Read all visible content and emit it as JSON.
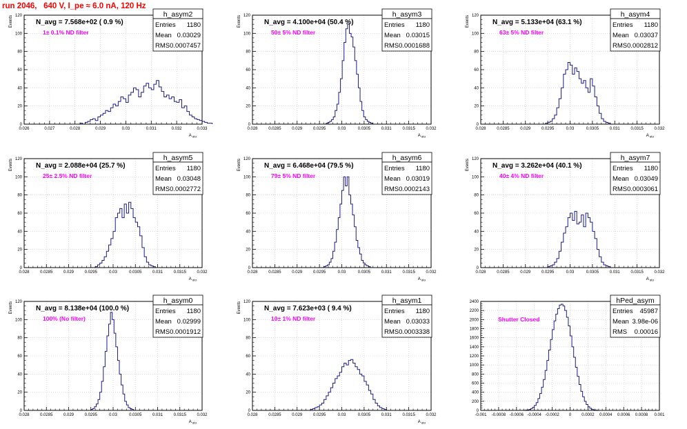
{
  "page_title": "run 2046,   640 V, I_pe ≈ 6.0 nA, 120 Hz",
  "colors": {
    "histogram": "#1a1a8c",
    "annotation": "#ff00ff",
    "frame": "#000000",
    "grid": "#c8c8c8",
    "title_text": "#ff0000"
  },
  "chart_data": [
    {
      "type": "bar",
      "hist_name": "h_asym2",
      "stats": {
        "Entries": "1180",
        "Mean": "0.03029",
        "RMS": "0.0007457"
      },
      "label": "N_avg = 7.568e+02 ( 0.9 %)",
      "filter_note": "1± 0.1% ND filter",
      "ylabel": "Events",
      "xlabel": "A_uto",
      "xlim": [
        0.026,
        0.033
      ],
      "ylim": [
        0,
        120
      ],
      "grid": true,
      "xticks": [
        0.026,
        0.027,
        0.028,
        0.029,
        0.03,
        0.031,
        0.032,
        0.033
      ],
      "xtick_labels": [
        "0.026",
        "0.027",
        "0.028",
        "0.029",
        "0.03",
        "0.031",
        "0.032",
        "0.033"
      ],
      "yticks": [
        0,
        20,
        40,
        60,
        80,
        100,
        120
      ],
      "bins": {
        "start": 0.0282,
        "step": 0.0001,
        "counts": [
          1,
          0,
          2,
          3,
          5,
          6,
          4,
          8,
          10,
          12,
          15,
          14,
          18,
          22,
          20,
          25,
          30,
          28,
          24,
          32,
          35,
          40,
          38,
          30,
          35,
          42,
          45,
          40,
          38,
          44,
          48,
          41,
          36,
          30,
          32,
          28,
          30,
          25,
          24,
          27,
          18,
          20,
          14,
          10,
          8,
          6,
          5,
          4,
          3,
          2,
          1,
          1
        ]
      }
    },
    {
      "type": "bar",
      "hist_name": "h_asym3",
      "stats": {
        "Entries": "1180",
        "Mean": "0.03015",
        "RMS": "0.0001688"
      },
      "label": "N_avg = 4.100e+04 (50.4 %)",
      "filter_note": "50± 5% ND filter",
      "ylabel": "Events",
      "xlabel": "A_uto",
      "xlim": [
        0.028,
        0.032
      ],
      "ylim": [
        0,
        120
      ],
      "grid": true,
      "xticks": [
        0.028,
        0.0285,
        0.029,
        0.0295,
        0.03,
        0.0305,
        0.031,
        0.0315,
        0.032
      ],
      "xtick_labels": [
        "0.028",
        "0.0285",
        "0.029",
        "0.0295",
        "0.03",
        "0.0305",
        "0.031",
        "0.0315",
        "0.032"
      ],
      "yticks": [
        0,
        20,
        40,
        60,
        80,
        100,
        120
      ],
      "bins": {
        "start": 0.02965,
        "step": 4e-05,
        "counts": [
          1,
          2,
          3,
          5,
          8,
          15,
          22,
          35,
          50,
          70,
          90,
          105,
          110,
          100,
          96,
          85,
          70,
          55,
          40,
          25,
          15,
          8,
          5,
          3,
          2,
          1
        ]
      }
    },
    {
      "type": "bar",
      "hist_name": "h_asym4",
      "stats": {
        "Entries": "1180",
        "Mean": "0.03037",
        "RMS": "0.0002812"
      },
      "label": "N_avg = 5.133e+04 (63.1 %)",
      "filter_note": "63± 5% ND filter",
      "ylabel": "Events",
      "xlabel": "A_uto",
      "xlim": [
        0.028,
        0.032
      ],
      "ylim": [
        0,
        120
      ],
      "grid": true,
      "xticks": [
        0.028,
        0.0285,
        0.029,
        0.0295,
        0.03,
        0.0305,
        0.031,
        0.0315,
        0.032
      ],
      "xtick_labels": [
        "0.028",
        "0.0285",
        "0.029",
        "0.0295",
        "0.03",
        "0.0305",
        "0.031",
        "0.0315",
        "0.032"
      ],
      "yticks": [
        0,
        20,
        40,
        60,
        80,
        100,
        120
      ],
      "bins": {
        "start": 0.02945,
        "step": 5e-05,
        "counts": [
          1,
          2,
          3,
          6,
          10,
          18,
          28,
          40,
          55,
          60,
          68,
          65,
          55,
          62,
          58,
          50,
          45,
          48,
          40,
          35,
          50,
          42,
          30,
          20,
          12,
          6,
          3,
          2,
          1
        ]
      }
    },
    {
      "type": "bar",
      "hist_name": "h_asym5",
      "stats": {
        "Entries": "1180",
        "Mean": "0.03048",
        "RMS": "0.0002772"
      },
      "label": "N_avg = 2.088e+04 (25.7 %)",
      "filter_note": "25± 2.5% ND filter",
      "ylabel": "Events",
      "xlabel": "A_uto",
      "xlim": [
        0.028,
        0.032
      ],
      "ylim": [
        0,
        120
      ],
      "grid": true,
      "xticks": [
        0.028,
        0.0285,
        0.029,
        0.0295,
        0.03,
        0.0305,
        0.031,
        0.0315,
        0.032
      ],
      "xtick_labels": [
        "0.028",
        "0.0285",
        "0.029",
        "0.0295",
        "0.03",
        "0.0305",
        "0.031",
        "0.0315",
        "0.032"
      ],
      "yticks": [
        0,
        20,
        40,
        60,
        80,
        100,
        120
      ],
      "bins": {
        "start": 0.0296,
        "step": 5e-05,
        "counts": [
          1,
          3,
          5,
          8,
          12,
          18,
          25,
          32,
          40,
          55,
          60,
          65,
          55,
          70,
          60,
          72,
          65,
          55,
          50,
          45,
          35,
          22,
          12,
          6,
          3,
          2,
          1
        ]
      }
    },
    {
      "type": "bar",
      "hist_name": "h_asym6",
      "stats": {
        "Entries": "1180",
        "Mean": "0.03019",
        "RMS": "0.0002143"
      },
      "label": "N_avg = 6.468e+04 (79.5 %)",
      "filter_note": "79± 5% ND filter",
      "ylabel": "Events",
      "xlabel": "A_uto",
      "xlim": [
        0.028,
        0.032
      ],
      "ylim": [
        0,
        120
      ],
      "grid": true,
      "xticks": [
        0.028,
        0.0285,
        0.029,
        0.0295,
        0.03,
        0.0305,
        0.031,
        0.0315,
        0.032
      ],
      "xtick_labels": [
        "0.028",
        "0.0285",
        "0.029",
        "0.0295",
        "0.03",
        "0.0305",
        "0.031",
        "0.0315",
        "0.032"
      ],
      "yticks": [
        0,
        20,
        40,
        60,
        80,
        100,
        120
      ],
      "bins": {
        "start": 0.0296,
        "step": 4e-05,
        "counts": [
          1,
          2,
          3,
          6,
          10,
          18,
          28,
          42,
          55,
          70,
          85,
          100,
          90,
          100,
          80,
          70,
          58,
          45,
          30,
          22,
          15,
          8,
          5,
          3,
          2,
          1
        ]
      }
    },
    {
      "type": "bar",
      "hist_name": "h_asym7",
      "stats": {
        "Entries": "1180",
        "Mean": "0.03049",
        "RMS": "0.0003061"
      },
      "label": "N_avg = 3.262e+04 (40.1 %)",
      "filter_note": "40± 4% ND filter",
      "ylabel": "Events",
      "xlabel": "A_uto",
      "xlim": [
        0.028,
        0.032
      ],
      "ylim": [
        0,
        120
      ],
      "grid": true,
      "xticks": [
        0.028,
        0.0285,
        0.029,
        0.0295,
        0.03,
        0.0305,
        0.031,
        0.0315,
        0.032
      ],
      "xtick_labels": [
        "0.028",
        "0.0285",
        "0.029",
        "0.0295",
        "0.03",
        "0.0305",
        "0.031",
        "0.0315",
        "0.032"
      ],
      "yticks": [
        0,
        20,
        40,
        60,
        80,
        100,
        120
      ],
      "bins": {
        "start": 0.0295,
        "step": 5e-05,
        "counts": [
          1,
          2,
          3,
          6,
          10,
          18,
          28,
          38,
          45,
          55,
          60,
          52,
          62,
          48,
          50,
          58,
          45,
          60,
          55,
          50,
          40,
          32,
          20,
          12,
          6,
          3,
          2,
          1
        ]
      }
    },
    {
      "type": "bar",
      "hist_name": "h_asym0",
      "stats": {
        "Entries": "1180",
        "Mean": "0.02999",
        "RMS": "0.0001912"
      },
      "label": "N_avg = 8.138e+04 (100.0 %)",
      "filter_note": "100% (No filter)",
      "ylabel": "Events",
      "xlabel": "A_uto",
      "xlim": [
        0.028,
        0.032
      ],
      "ylim": [
        0,
        120
      ],
      "grid": true,
      "xticks": [
        0.028,
        0.0285,
        0.029,
        0.0295,
        0.03,
        0.0305,
        0.031,
        0.0315,
        0.032
      ],
      "xtick_labels": [
        "0.028",
        "0.0285",
        "0.029",
        "0.0295",
        "0.03",
        "0.0305",
        "0.031",
        "0.0315",
        "0.032"
      ],
      "yticks": [
        0,
        20,
        40,
        60,
        80,
        100,
        120
      ],
      "bins": {
        "start": 0.0295,
        "step": 4e-05,
        "counts": [
          1,
          2,
          4,
          7,
          12,
          20,
          32,
          48,
          65,
          82,
          95,
          108,
          100,
          85,
          70,
          55,
          40,
          28,
          18,
          10,
          6,
          3,
          2,
          1
        ]
      }
    },
    {
      "type": "bar",
      "hist_name": "h_asym1",
      "stats": {
        "Entries": "1180",
        "Mean": "0.03033",
        "RMS": "0.0003338"
      },
      "label": "N_avg = 7.623e+03 ( 9.4 %)",
      "filter_note": "10± 1% ND filter",
      "ylabel": "Events",
      "xlabel": "A_uto",
      "xlim": [
        0.028,
        0.032
      ],
      "ylim": [
        0,
        120
      ],
      "grid": true,
      "xticks": [
        0.028,
        0.0285,
        0.029,
        0.0295,
        0.03,
        0.0305,
        0.031,
        0.0315,
        0.032
      ],
      "xtick_labels": [
        "0.028",
        "0.0285",
        "0.029",
        "0.0295",
        "0.03",
        "0.0305",
        "0.031",
        "0.0315",
        "0.032"
      ],
      "yticks": [
        0,
        20,
        40,
        60,
        80,
        100,
        120
      ],
      "bins": {
        "start": 0.0293,
        "step": 5e-05,
        "counts": [
          1,
          2,
          3,
          4,
          6,
          8,
          12,
          16,
          20,
          25,
          30,
          35,
          38,
          42,
          48,
          52,
          50,
          55,
          56,
          52,
          48,
          45,
          40,
          38,
          32,
          28,
          22,
          18,
          12,
          8,
          5,
          3,
          2,
          1
        ]
      }
    },
    {
      "type": "bar",
      "hist_name": "hPed_asym",
      "stats": {
        "Entries": "45987",
        "Mean": "3.98e-06",
        "RMS": "0.00016"
      },
      "label": "",
      "filter_note": "Shutter Closed",
      "ylabel": "",
      "xlabel": "",
      "xlim": [
        -0.001,
        0.001
      ],
      "ylim": [
        0,
        2400
      ],
      "grid": true,
      "xticks": [
        -0.001,
        -0.0008,
        -0.0006,
        -0.0004,
        -0.0002,
        0,
        0.0002,
        0.0004,
        0.0006,
        0.0008,
        0.001
      ],
      "xtick_labels": [
        "-0.001",
        "-0.0008",
        "-0.0006",
        "-0.0004",
        "-0.0002",
        "0",
        "0.0002",
        "0.0004",
        "0.0006",
        "0.0008",
        "0.001"
      ],
      "yticks": [
        0,
        200,
        400,
        600,
        800,
        1000,
        1200,
        1400,
        1600,
        1800,
        2000,
        2200,
        2400
      ],
      "bins": {
        "start": -0.00052,
        "step": 2e-05,
        "counts": [
          2,
          5,
          10,
          20,
          40,
          70,
          110,
          170,
          260,
          370,
          510,
          680,
          880,
          1100,
          1330,
          1560,
          1780,
          1970,
          2120,
          2240,
          2320,
          2340,
          2300,
          2200,
          2050,
          1860,
          1640,
          1400,
          1170,
          950,
          750,
          570,
          420,
          300,
          200,
          130,
          80,
          45,
          24,
          12,
          6,
          3
        ]
      }
    }
  ]
}
